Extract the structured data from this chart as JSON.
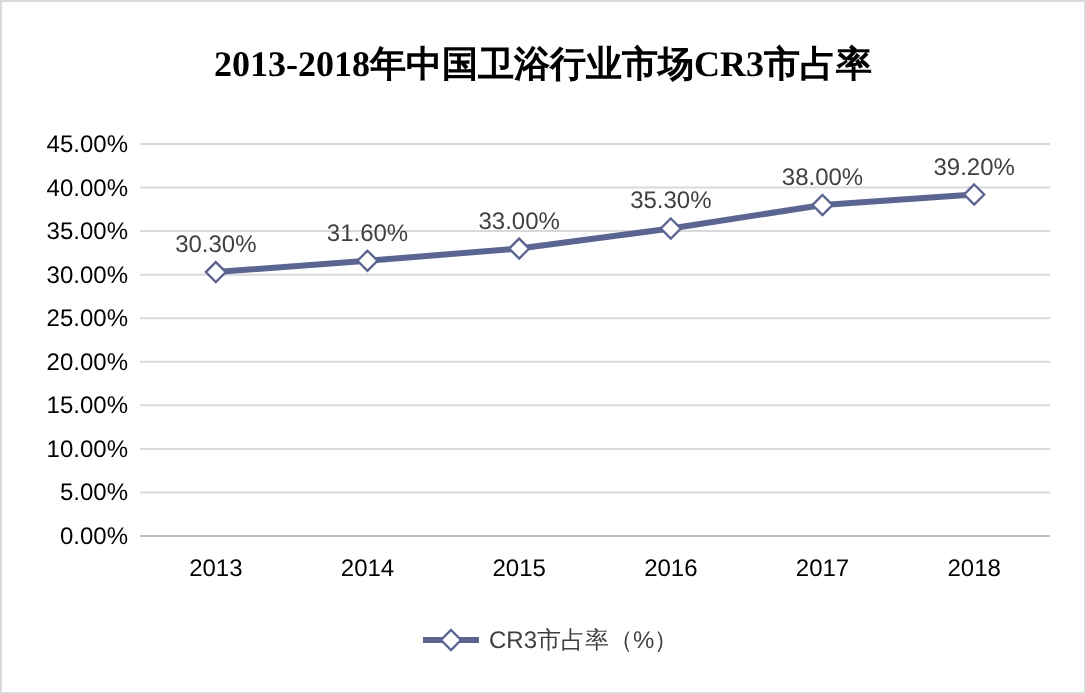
{
  "chart_data": {
    "type": "line",
    "title": "2013-2018年中国卫浴行业市场CR3市占率",
    "categories": [
      "2013",
      "2014",
      "2015",
      "2016",
      "2017",
      "2018"
    ],
    "series": [
      {
        "name": "CR3市占率（%）",
        "color": "#5b6591",
        "values": [
          30.3,
          31.6,
          33.0,
          35.3,
          38.0,
          39.2
        ],
        "value_labels": [
          "30.30%",
          "31.60%",
          "33.00%",
          "35.30%",
          "38.00%",
          "39.20%"
        ]
      }
    ],
    "ylim": [
      0,
      45
    ],
    "yticks": [
      {
        "value": 0,
        "label": "0.00%"
      },
      {
        "value": 5,
        "label": "5.00%"
      },
      {
        "value": 10,
        "label": "10.00%"
      },
      {
        "value": 15,
        "label": "15.00%"
      },
      {
        "value": 20,
        "label": "20.00%"
      },
      {
        "value": 25,
        "label": "25.00%"
      },
      {
        "value": 30,
        "label": "30.00%"
      },
      {
        "value": 35,
        "label": "35.00%"
      },
      {
        "value": 40,
        "label": "40.00%"
      },
      {
        "value": 45,
        "label": "45.00%"
      }
    ],
    "grid": "y",
    "legend": "bottom",
    "marker": "diamond",
    "line_style": "solid"
  }
}
